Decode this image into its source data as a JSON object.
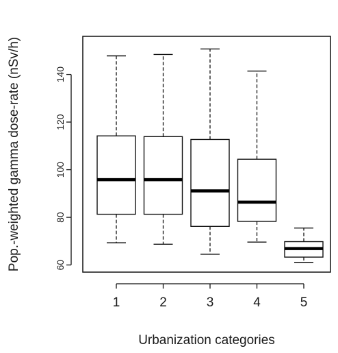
{
  "chart_data": {
    "type": "boxplot",
    "xlabel": "Urbanization categories",
    "ylabel": "Pop.-weighted gamma dose-rate (nSv/h)",
    "categories": [
      "1",
      "2",
      "3",
      "4",
      "5"
    ],
    "ylim": [
      57,
      156
    ],
    "yticks": [
      60,
      80,
      100,
      120,
      140
    ],
    "grid": false,
    "boxes": [
      {
        "category": "1",
        "whisker_low": 69.3,
        "q1": 81.3,
        "median": 95.8,
        "q3": 114.2,
        "whisker_high": 147.8
      },
      {
        "category": "2",
        "whisker_low": 68.7,
        "q1": 81.3,
        "median": 95.8,
        "q3": 113.9,
        "whisker_high": 148.4
      },
      {
        "category": "3",
        "whisker_low": 64.5,
        "q1": 76.2,
        "median": 91.1,
        "q3": 112.7,
        "whisker_high": 150.7
      },
      {
        "category": "4",
        "whisker_low": 69.6,
        "q1": 78.3,
        "median": 86.4,
        "q3": 104.4,
        "whisker_high": 141.4
      },
      {
        "category": "5",
        "whisker_low": 61.1,
        "q1": 63.3,
        "median": 66.9,
        "q3": 69.8,
        "whisker_high": 75.5
      }
    ]
  }
}
